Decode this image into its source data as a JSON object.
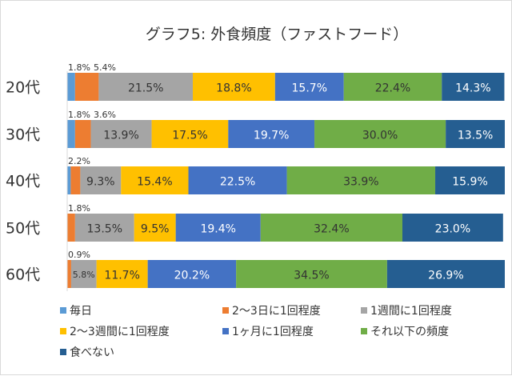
{
  "chart_data": {
    "type": "bar",
    "orientation": "horizontal",
    "stacked": "percent",
    "title": "グラフ5: 外食頻度（ファストフード）",
    "categories": [
      "20代",
      "30代",
      "40代",
      "50代",
      "60代"
    ],
    "xlim": [
      0,
      100
    ],
    "grid": false,
    "legend_position": "bottom",
    "series": [
      {
        "name": "毎日",
        "color": "#5b9bd5",
        "values": [
          1.8,
          1.8,
          0.8,
          0,
          0
        ],
        "labels": [
          "1.8%",
          "1.8%",
          "",
          "",
          ""
        ]
      },
      {
        "name": "2〜3日に1回程度",
        "color": "#ed7d31",
        "values": [
          5.4,
          3.6,
          2.2,
          1.8,
          0.9
        ],
        "labels": [
          "5.4%",
          "3.6%",
          "2.2%",
          "1.8%",
          "0.9%"
        ]
      },
      {
        "name": "1週間に1回程度",
        "color": "#a5a5a5",
        "values": [
          21.5,
          13.9,
          9.3,
          13.5,
          5.8
        ],
        "labels": [
          "21.5%",
          "13.9%",
          "9.3%",
          "13.5%",
          "5.8%"
        ]
      },
      {
        "name": "2〜3週間に1回程度",
        "color": "#ffc000",
        "values": [
          18.8,
          17.5,
          15.4,
          9.5,
          11.7
        ],
        "labels": [
          "18.8%",
          "17.5%",
          "15.4%",
          "9.5%",
          "11.7%"
        ]
      },
      {
        "name": "1ヶ月に1回程度",
        "color": "#4472c4",
        "values": [
          15.7,
          19.7,
          22.5,
          19.4,
          20.2
        ],
        "labels": [
          "15.7%",
          "19.7%",
          "22.5%",
          "19.4%",
          "20.2%"
        ]
      },
      {
        "name": "それ以下の頻度",
        "color": "#70ad47",
        "values": [
          22.4,
          30.0,
          33.9,
          32.4,
          34.5
        ],
        "labels": [
          "22.4%",
          "30.0%",
          "33.9%",
          "32.4%",
          "34.5%"
        ]
      },
      {
        "name": "食べない",
        "color": "#255e91",
        "values": [
          14.3,
          13.5,
          15.9,
          23.0,
          26.9
        ],
        "labels": [
          "14.3%",
          "13.5%",
          "15.9%",
          "23.0%",
          "26.9%"
        ]
      }
    ]
  }
}
